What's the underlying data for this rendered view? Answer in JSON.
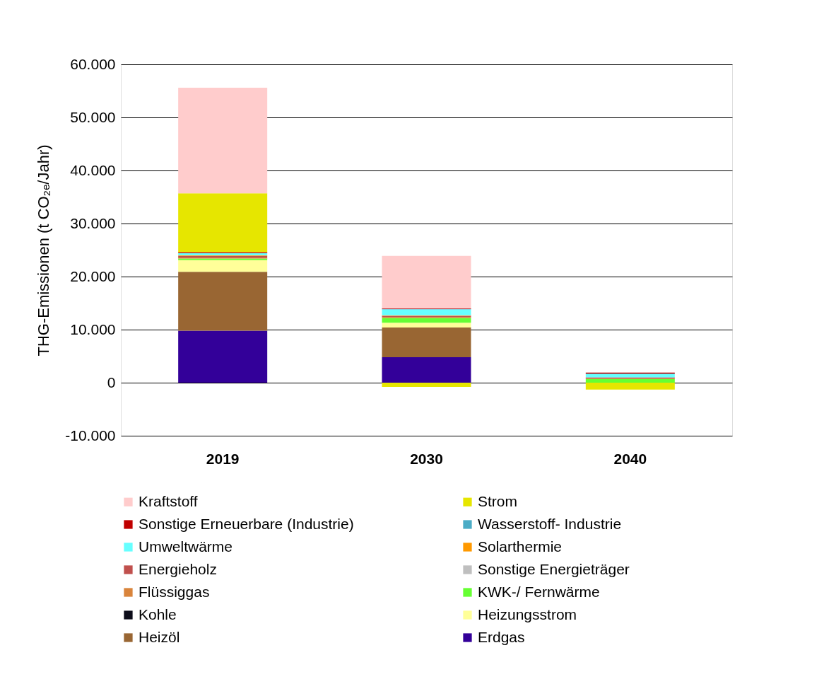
{
  "chart_data": {
    "type": "bar",
    "stacked": true,
    "ylabel": "THG-Emissionen (t CO₂ₑ/Jahr)",
    "categories": [
      "2019",
      "2030",
      "2040"
    ],
    "series": [
      {
        "name": "Erdgas",
        "color": "#330099",
        "values": [
          9800,
          4800,
          0
        ]
      },
      {
        "name": "Heizöl",
        "color": "#996633",
        "values": [
          11100,
          5600,
          0
        ]
      },
      {
        "name": "Heizungsstrom",
        "color": "#ffff99",
        "values": [
          2200,
          900,
          0
        ]
      },
      {
        "name": "Kohle",
        "color": "#0d0d1a",
        "values": [
          0,
          0,
          0
        ]
      },
      {
        "name": "KWK-/ Fernwärme",
        "color": "#66ff33",
        "values": [
          300,
          900,
          700
        ]
      },
      {
        "name": "Flüssiggas",
        "color": "#d9843b",
        "values": [
          200,
          200,
          100
        ]
      },
      {
        "name": "Sonstige Energieträger",
        "color": "#bfbfbf",
        "values": [
          null,
          0,
          0
        ]
      },
      {
        "name": "Energieholz",
        "color": "#c0504d",
        "values": [
          300,
          200,
          200
        ]
      },
      {
        "name": "Solarthermie",
        "color": "#ff9900",
        "values": [
          100,
          100,
          0
        ]
      },
      {
        "name": "Umweltwärme",
        "color": "#66ffff",
        "values": [
          400,
          1100,
          600
        ]
      },
      {
        "name": "Wasserstoff- Industrie",
        "color": "#4bacc6",
        "values": [
          0,
          100,
          100
        ]
      },
      {
        "name": "Sonstige Erneuerbare (Industrie)",
        "color": "#c00000",
        "values": [
          200,
          100,
          200
        ]
      },
      {
        "name": "Strom",
        "color": "#e6e600",
        "values": [
          11100,
          -800,
          -1300
        ]
      },
      {
        "name": "Kraftstoff",
        "color": "#ffcccc",
        "values": [
          19900,
          9900,
          0
        ]
      }
    ],
    "ylim": [
      -10000,
      60000
    ],
    "yticks": [
      {
        "value": -10000,
        "label": "-10.000"
      },
      0,
      {
        "value": 10000,
        "label": "10.000"
      },
      {
        "value": 20000,
        "label": "20.000"
      },
      {
        "value": 30000,
        "label": "30.000"
      },
      {
        "value": 40000,
        "label": "40.000"
      },
      {
        "value": 50000,
        "label": "50.000"
      },
      {
        "value": 60000,
        "label": "60.000"
      }
    ],
    "grid": "y",
    "legend": "bottom"
  }
}
